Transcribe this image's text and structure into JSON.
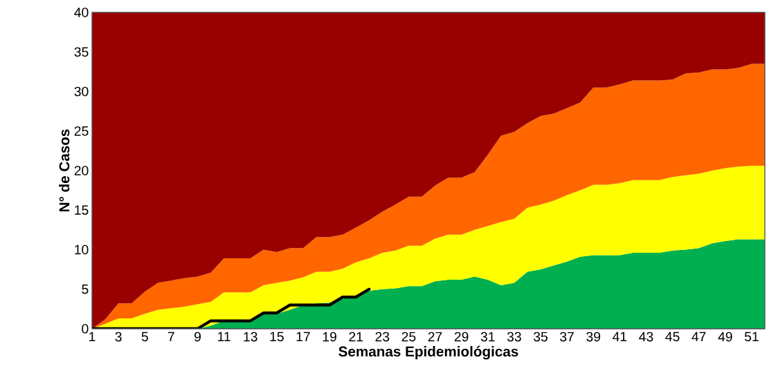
{
  "chart_data": {
    "type": "area",
    "stacked": true,
    "xlabel": "Semanas Epidemiológicas",
    "ylabel": "N° de Casos",
    "x": [
      1,
      2,
      3,
      4,
      5,
      6,
      7,
      8,
      9,
      10,
      11,
      12,
      13,
      14,
      15,
      16,
      17,
      18,
      19,
      20,
      21,
      22,
      23,
      24,
      25,
      26,
      27,
      28,
      29,
      30,
      31,
      32,
      33,
      34,
      35,
      36,
      37,
      38,
      39,
      40,
      41,
      42,
      43,
      44,
      45,
      46,
      47,
      48,
      49,
      50,
      51,
      52
    ],
    "xlim": [
      1,
      52
    ],
    "xticks": [
      1,
      3,
      5,
      7,
      9,
      11,
      13,
      15,
      17,
      19,
      21,
      23,
      25,
      27,
      29,
      31,
      33,
      35,
      37,
      39,
      41,
      43,
      45,
      47,
      49,
      51
    ],
    "ylim": [
      0,
      40
    ],
    "yticks": [
      0,
      5,
      10,
      15,
      20,
      25,
      30,
      35,
      40
    ],
    "series": [
      {
        "color": "#00b050",
        "values": [
          0,
          0,
          0,
          0,
          0,
          0,
          0,
          0,
          0,
          0.4,
          1.0,
          1.0,
          1.0,
          1.9,
          1.9,
          2.4,
          3.0,
          3.2,
          3.3,
          3.8,
          4.2,
          4.8,
          5.0,
          5.1,
          5.4,
          5.4,
          6.0,
          6.2,
          6.2,
          6.6,
          6.2,
          5.5,
          5.8,
          7.2,
          7.5,
          8.0,
          8.5,
          9.1,
          9.3,
          9.3,
          9.3,
          9.6,
          9.6,
          9.6,
          9.9,
          10.0,
          10.2,
          10.8,
          11.1,
          11.3,
          11.3,
          11.3
        ]
      },
      {
        "color": "#ffff00",
        "values": [
          0,
          0.6,
          1.3,
          1.3,
          1.9,
          2.4,
          2.6,
          2.8,
          3.1,
          3.0,
          3.6,
          3.6,
          3.6,
          3.6,
          3.9,
          3.7,
          3.5,
          4.0,
          3.9,
          3.8,
          4.2,
          4.1,
          4.6,
          4.8,
          5.1,
          5.1,
          5.4,
          5.7,
          5.7,
          5.9,
          6.8,
          8.0,
          8.1,
          8.1,
          8.2,
          8.2,
          8.4,
          8.4,
          8.9,
          8.9,
          9.1,
          9.2,
          9.2,
          9.2,
          9.3,
          9.4,
          9.4,
          9.2,
          9.2,
          9.2,
          9.3,
          9.3
        ]
      },
      {
        "color": "#ff6600",
        "values": [
          0,
          0.6,
          1.9,
          1.9,
          2.8,
          3.4,
          3.5,
          3.6,
          3.5,
          3.7,
          4.3,
          4.3,
          4.3,
          4.5,
          3.9,
          4.1,
          3.7,
          4.4,
          4.4,
          4.3,
          4.4,
          4.8,
          5.2,
          5.8,
          6.2,
          6.2,
          6.7,
          7.2,
          7.2,
          7.3,
          9.0,
          10.9,
          11.0,
          10.7,
          11.2,
          11.0,
          11.0,
          11.1,
          12.3,
          12.3,
          12.5,
          12.6,
          12.6,
          12.6,
          12.3,
          12.9,
          12.8,
          12.8,
          12.5,
          12.5,
          12.9,
          12.9
        ]
      },
      {
        "color": "#990000",
        "values": [
          40,
          38.8,
          36.8,
          36.8,
          35.3,
          34.2,
          33.9,
          33.6,
          33.4,
          32.9,
          31.1,
          31.1,
          31.1,
          30.0,
          30.3,
          29.8,
          29.8,
          28.4,
          28.4,
          28.1,
          27.2,
          26.3,
          25.2,
          24.3,
          23.3,
          23.3,
          21.9,
          20.9,
          20.9,
          20.2,
          18.0,
          15.6,
          15.1,
          14.0,
          13.1,
          12.8,
          12.1,
          11.4,
          9.5,
          9.5,
          9.1,
          8.6,
          8.6,
          8.6,
          8.5,
          7.7,
          7.6,
          7.2,
          7.2,
          7.0,
          6.5,
          6.5
        ]
      },
      {
        "type": "line",
        "color": "#000000",
        "values": [
          0,
          0,
          0,
          0,
          0,
          0,
          0,
          0,
          0,
          1,
          1,
          1,
          1,
          2,
          2,
          3,
          3,
          3,
          3,
          4,
          4,
          5,
          null,
          null,
          null,
          null,
          null,
          null,
          null,
          null,
          null,
          null,
          null,
          null,
          null,
          null,
          null,
          null,
          null,
          null,
          null,
          null,
          null,
          null,
          null,
          null,
          null,
          null,
          null,
          null,
          null,
          null
        ]
      }
    ]
  }
}
